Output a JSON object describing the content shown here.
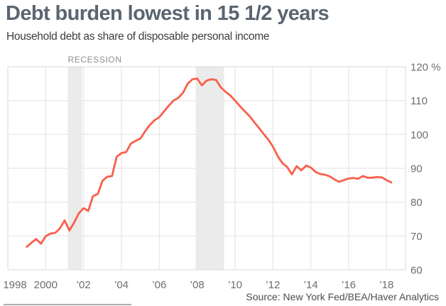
{
  "header": {
    "title": "Debt burden lowest in 15 1/2 years",
    "subtitle": "Household debt as share of disposable personal income"
  },
  "source": "Source: New York Fed/BEA/Haver Analytics",
  "chart_data": {
    "type": "line",
    "title": "Debt burden lowest in 15 1/2 years",
    "series_name": "Household debt as share of disposable personal income",
    "unit": "%",
    "x_start": 1999.0,
    "x_step": 0.25,
    "values": [
      66.8,
      68.0,
      69.1,
      67.7,
      69.9,
      70.7,
      70.9,
      72.2,
      74.6,
      71.6,
      73.9,
      76.7,
      78.2,
      77.4,
      81.8,
      82.4,
      86.3,
      87.5,
      87.7,
      93.4,
      94.5,
      94.8,
      97.3,
      98.1,
      98.8,
      100.9,
      102.8,
      104.2,
      105.1,
      106.8,
      108.5,
      110.0,
      110.8,
      112.3,
      115.0,
      116.3,
      116.5,
      114.5,
      115.9,
      116.3,
      116.1,
      113.9,
      112.6,
      111.5,
      110.0,
      108.4,
      106.9,
      105.5,
      103.7,
      102.0,
      100.2,
      98.5,
      96.4,
      93.6,
      91.5,
      90.4,
      88.2,
      90.6,
      89.4,
      90.8,
      90.2,
      88.9,
      88.3,
      88.1,
      87.6,
      86.7,
      86.0,
      86.5,
      87.0,
      87.1,
      86.9,
      87.7,
      87.2,
      87.2,
      87.4,
      87.3,
      86.5,
      85.8
    ],
    "xlim": [
      1998,
      2019
    ],
    "ylim": [
      60,
      120
    ],
    "grid": true,
    "legend": "none",
    "x_ticks": [
      {
        "t": 1998,
        "label": "1998"
      },
      {
        "t": 2000,
        "label": "2000"
      },
      {
        "t": 2002,
        "label": "’02"
      },
      {
        "t": 2004,
        "label": "’04"
      },
      {
        "t": 2006,
        "label": "’06"
      },
      {
        "t": 2008,
        "label": "’08"
      },
      {
        "t": 2010,
        "label": "’10"
      },
      {
        "t": 2012,
        "label": "’12"
      },
      {
        "t": 2014,
        "label": "’14"
      },
      {
        "t": 2016,
        "label": "’16"
      },
      {
        "t": 2018,
        "label": "’18"
      }
    ],
    "y_ticks": [
      {
        "v": 120,
        "label": "120 %"
      },
      {
        "v": 110,
        "label": "110"
      },
      {
        "v": 100,
        "label": "100"
      },
      {
        "v": 90,
        "label": "90"
      },
      {
        "v": 80,
        "label": "80"
      },
      {
        "v": 70,
        "label": "70"
      },
      {
        "v": 60,
        "label": "60"
      }
    ],
    "recessions": [
      {
        "start": 2001.17,
        "end": 2001.92
      },
      {
        "start": 2007.92,
        "end": 2009.42
      }
    ],
    "recession_label": "RECESSION",
    "line_color": "#fa5f4b",
    "band_color": "#ebebeb",
    "grid_color": "#e2e2e2",
    "frame_color": "#d9d9d9",
    "tick_color": "#6e6e6e",
    "recession_label_color": "#8d8d8d"
  }
}
